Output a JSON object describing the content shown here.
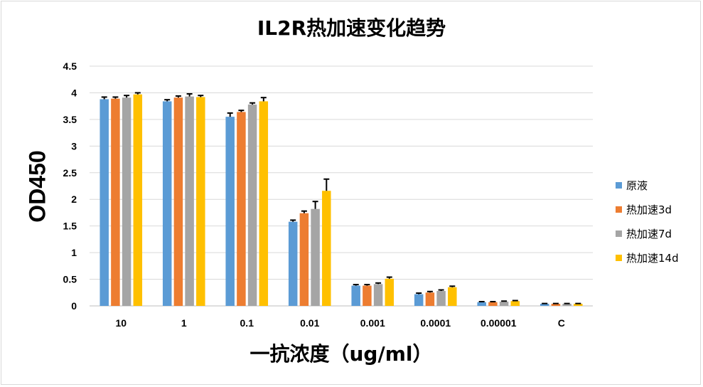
{
  "chart_data": {
    "type": "bar",
    "title": "IL2R热加速变化趋势",
    "xlabel": "一抗浓度（ug/ml）",
    "ylabel": "OD450",
    "ylim": [
      0,
      4.5
    ],
    "yticks": [
      "0",
      "0.5",
      "1",
      "1.5",
      "2",
      "2.5",
      "3",
      "3.5",
      "4",
      "4.5"
    ],
    "categories": [
      "10",
      "1",
      "0.1",
      "0.01",
      "0.001",
      "0.0001",
      "0.00001",
      "C"
    ],
    "grid": true,
    "legend_position": "right",
    "series": [
      {
        "name": "原液",
        "color": "#5b9bd5",
        "values": [
          3.88,
          3.84,
          3.55,
          1.58,
          0.38,
          0.22,
          0.07,
          0.04
        ],
        "errors": [
          0.04,
          0.03,
          0.07,
          0.03,
          0.02,
          0.02,
          0.01,
          0.005
        ]
      },
      {
        "name": "热加速3d",
        "color": "#ed7d31",
        "values": [
          3.89,
          3.91,
          3.64,
          1.74,
          0.38,
          0.25,
          0.07,
          0.04
        ],
        "errors": [
          0.03,
          0.03,
          0.03,
          0.04,
          0.02,
          0.02,
          0.01,
          0.005
        ]
      },
      {
        "name": "热加速7d",
        "color": "#a5a5a5",
        "values": [
          3.91,
          3.93,
          3.78,
          1.82,
          0.41,
          0.28,
          0.08,
          0.04
        ],
        "errors": [
          0.04,
          0.05,
          0.03,
          0.14,
          0.02,
          0.02,
          0.01,
          0.005
        ]
      },
      {
        "name": "热加速14d",
        "color": "#ffc000",
        "values": [
          3.97,
          3.92,
          3.84,
          2.16,
          0.51,
          0.35,
          0.09,
          0.04
        ],
        "errors": [
          0.03,
          0.03,
          0.07,
          0.22,
          0.03,
          0.02,
          0.01,
          0.005
        ]
      }
    ]
  }
}
